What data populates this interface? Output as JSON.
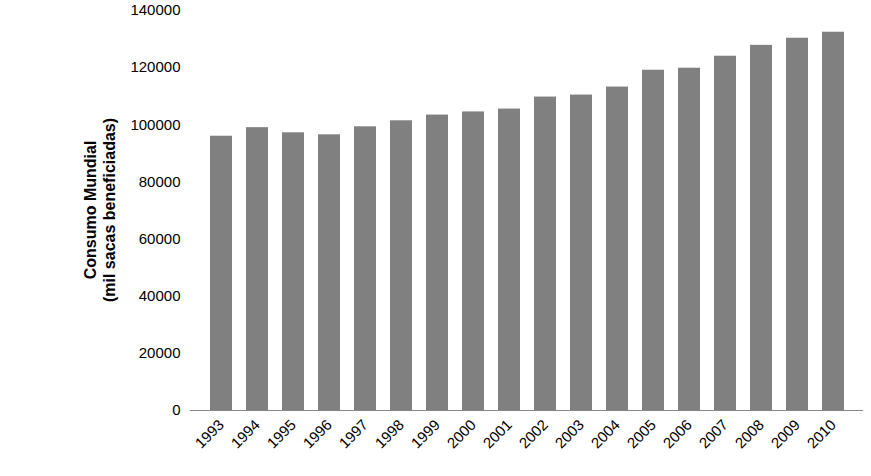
{
  "chart_data": {
    "type": "bar",
    "y_label": "Consumo Mundial\n(mil sacas beneficiadas)",
    "categories": [
      "1993",
      "1994",
      "1995",
      "1996",
      "1997",
      "1998",
      "1999",
      "2000",
      "2001",
      "2002",
      "2003",
      "2004",
      "2005",
      "2006",
      "2007",
      "2008",
      "2009",
      "2010"
    ],
    "values": [
      96000,
      99000,
      97200,
      96500,
      99300,
      101400,
      103400,
      104500,
      105500,
      109700,
      110400,
      113200,
      119100,
      119800,
      124000,
      127800,
      130300,
      132400
    ],
    "color": "#808080",
    "ylim": [
      0,
      140000
    ],
    "yticks": [
      0,
      20000,
      40000,
      60000,
      80000,
      100000,
      120000,
      140000
    ],
    "grid": false
  }
}
